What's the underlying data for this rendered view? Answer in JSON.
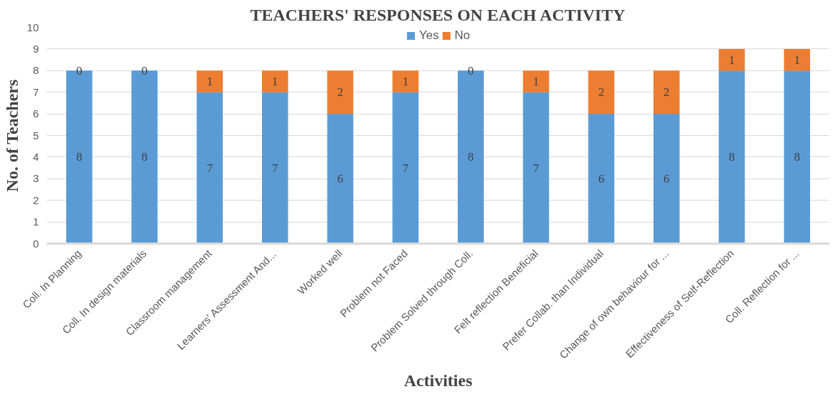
{
  "chart_data": {
    "type": "bar",
    "title": "TEACHERS' RESPONSES ON EACH ACTIVITY",
    "xlabel": "Activities",
    "ylabel": "No. of Teachers",
    "categories": [
      "Coll. In Planning",
      "Coll. In design materials",
      "Classroom management",
      "Learners' Assessment And...",
      "Worked well",
      "Problem not Faced",
      "Problem Solved through Coll.",
      "Felt reflection Beneficial",
      "Prefer Collab. than Individual",
      "Change of own behaviour for ...",
      "Effectiveness of Self-Reflection",
      "Coll. Reflection for ..."
    ],
    "series": [
      {
        "name": "Yes",
        "color": "#5b9bd5",
        "values": [
          8,
          8,
          7,
          7,
          6,
          7,
          8,
          7,
          6,
          6,
          8,
          8
        ]
      },
      {
        "name": "No",
        "color": "#ed7d31",
        "values": [
          0,
          0,
          1,
          1,
          2,
          1,
          0,
          1,
          2,
          2,
          1,
          1
        ]
      }
    ],
    "stacked": true,
    "data_labels": true,
    "ylim": [
      0,
      10
    ],
    "yticks": [
      0,
      1,
      2,
      3,
      4,
      5,
      6,
      7,
      8,
      9,
      10
    ],
    "grid": "y",
    "legend": "top"
  }
}
